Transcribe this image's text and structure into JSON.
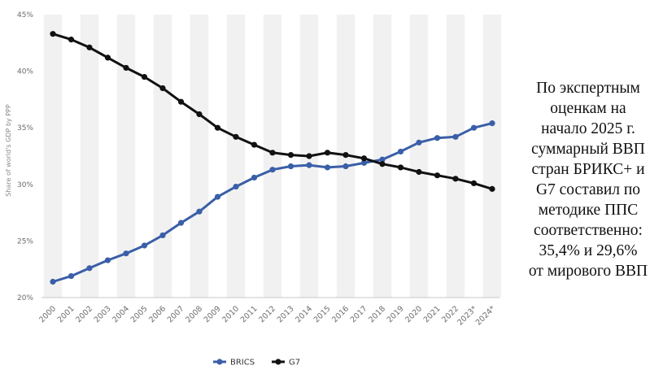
{
  "annotation": {
    "lines": [
      "По экспертным",
      "оценкам на",
      "начало 2025 г.",
      "суммарный ВВП",
      "стран БРИКС+ и",
      "G7 составил по",
      "методике ППС",
      "соответственно:",
      "35,4% и 29,6%",
      "от мирового ВВП"
    ]
  },
  "chart_data": {
    "type": "line",
    "title": "",
    "xlabel": "",
    "ylabel": "Share of world's GDP by PPP",
    "categories": [
      "2000",
      "2001",
      "2002",
      "2003",
      "2004",
      "2005",
      "2006",
      "2007",
      "2008",
      "2009",
      "2010",
      "2011",
      "2012",
      "2013",
      "2014",
      "2015",
      "2016",
      "2017",
      "2018",
      "2019",
      "2020",
      "2021",
      "2022",
      "2023*",
      "2024*"
    ],
    "ylim": [
      20,
      45
    ],
    "yticks": [
      20,
      25,
      30,
      35,
      40,
      45
    ],
    "ytick_labels": [
      "20%",
      "25%",
      "30%",
      "35%",
      "40%",
      "45%"
    ],
    "grid": "vertical bands",
    "legend_position": "bottom",
    "series": [
      {
        "name": "BRICS",
        "color": "#3a5fa8",
        "values": [
          21.4,
          21.9,
          22.6,
          23.3,
          23.9,
          24.6,
          25.5,
          26.6,
          27.6,
          28.9,
          29.8,
          30.6,
          31.3,
          31.6,
          31.7,
          31.5,
          31.6,
          31.9,
          32.2,
          32.9,
          33.7,
          34.1,
          34.2,
          35.0,
          35.4
        ]
      },
      {
        "name": "G7",
        "color": "#111111",
        "values": [
          43.3,
          42.8,
          42.1,
          41.2,
          40.3,
          39.5,
          38.5,
          37.3,
          36.2,
          35.0,
          34.2,
          33.5,
          32.8,
          32.6,
          32.5,
          32.8,
          32.6,
          32.3,
          31.8,
          31.5,
          31.1,
          30.8,
          30.5,
          30.1,
          29.6
        ]
      }
    ]
  }
}
